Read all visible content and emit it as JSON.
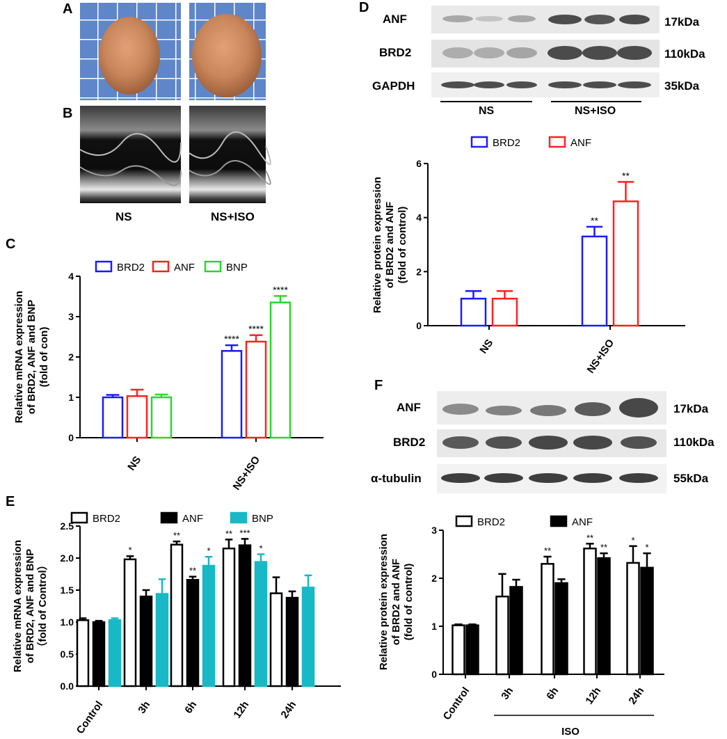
{
  "panels": {
    "A": "A",
    "B": "B",
    "C": "C",
    "D": "D",
    "E": "E",
    "F": "F"
  },
  "ab_labels": {
    "ns": "NS",
    "ns_iso": "NS+ISO"
  },
  "blot_d": {
    "bands": [
      {
        "name": "ANF",
        "size": "17kDa"
      },
      {
        "name": "BRD2",
        "size": "110kDa"
      },
      {
        "name": "GAPDH",
        "size": "35kDa"
      }
    ],
    "groups": [
      "NS",
      "NS+ISO"
    ]
  },
  "blot_f": {
    "bands": [
      {
        "name": "ANF",
        "size": "17kDa"
      },
      {
        "name": "BRD2",
        "size": "110kDa"
      },
      {
        "name": "α-tubulin",
        "size": "55kDa"
      }
    ]
  },
  "colors": {
    "brd2": "#1a1aff",
    "anf": "#ff2020",
    "bnp": "#2bd62b",
    "bnp_e": "#19b8c6"
  },
  "chart_data": [
    {
      "id": "C",
      "type": "bar",
      "categories": [
        "NS",
        "NS+ISO"
      ],
      "ylabel": [
        "Relative mRNA expression",
        "of BRD2, ANF and BNP",
        "(fold of con)"
      ],
      "ylim": [
        0,
        4
      ],
      "yticks": [
        "0",
        "1",
        "2",
        "3",
        "4"
      ],
      "legend": [
        "BRD2",
        "ANF",
        "BNP"
      ],
      "series": [
        {
          "name": "BRD2",
          "values": [
            1.0,
            2.15
          ],
          "err": [
            0.06,
            0.14
          ],
          "sig": [
            "",
            "****"
          ]
        },
        {
          "name": "ANF",
          "values": [
            1.03,
            2.38
          ],
          "err": [
            0.16,
            0.16
          ],
          "sig": [
            "",
            "****"
          ]
        },
        {
          "name": "BNP",
          "values": [
            1.0,
            3.35
          ],
          "err": [
            0.07,
            0.16
          ],
          "sig": [
            "",
            "****"
          ]
        }
      ]
    },
    {
      "id": "D",
      "type": "bar",
      "categories": [
        "NS",
        "NS+ISO"
      ],
      "ylabel": [
        "Relative protein expression",
        "of BRD2 and ANF",
        "(fold of control)"
      ],
      "ylim": [
        0,
        6
      ],
      "yticks": [
        "0",
        "2",
        "4",
        "6"
      ],
      "legend": [
        "BRD2",
        "ANF"
      ],
      "series": [
        {
          "name": "BRD2",
          "values": [
            1.0,
            3.3
          ],
          "err": [
            0.28,
            0.36
          ],
          "sig": [
            "",
            "**"
          ]
        },
        {
          "name": "ANF",
          "values": [
            1.0,
            4.6
          ],
          "err": [
            0.28,
            0.72
          ],
          "sig": [
            "",
            "**"
          ]
        }
      ]
    },
    {
      "id": "E",
      "type": "bar",
      "categories": [
        "Control",
        "3h",
        "6h",
        "12h",
        "24h"
      ],
      "ylabel": [
        "Relative mRNA expression",
        "of BRD2, ANF and BNP",
        "（fold of Control）"
      ],
      "ylim": [
        0,
        2.5
      ],
      "yticks": [
        "0.0",
        "0.5",
        "1.0",
        "1.5",
        "2.0",
        "2.5"
      ],
      "legend": [
        "BRD2",
        "ANF",
        "BNP"
      ],
      "series": [
        {
          "name": "BRD2",
          "values": [
            1.03,
            1.98,
            2.21,
            2.15,
            1.45
          ],
          "err": [
            0.03,
            0.05,
            0.05,
            0.14,
            0.25
          ],
          "sig": [
            "",
            "*",
            "**",
            "**",
            ""
          ]
        },
        {
          "name": "ANF",
          "values": [
            1.0,
            1.4,
            1.66,
            2.2,
            1.38
          ],
          "err": [
            0.02,
            0.1,
            0.05,
            0.1,
            0.1
          ],
          "sig": [
            "",
            "",
            "**",
            "***",
            ""
          ]
        },
        {
          "name": "BNP",
          "values": [
            1.03,
            1.44,
            1.88,
            1.94,
            1.54
          ],
          "err": [
            0.03,
            0.23,
            0.14,
            0.12,
            0.19
          ],
          "sig": [
            "",
            "",
            "*",
            "*",
            ""
          ]
        }
      ]
    },
    {
      "id": "F",
      "type": "bar",
      "categories": [
        "Control",
        "3h",
        "6h",
        "12h",
        "24h"
      ],
      "group_label": "ISO",
      "ylabel": [
        "Relative protein expression",
        "of BRD2 and ANF",
        "(fold of control)"
      ],
      "ylim": [
        0,
        3
      ],
      "yticks": [
        "0",
        "1",
        "2",
        "3"
      ],
      "legend": [
        "BRD2",
        "ANF"
      ],
      "series": [
        {
          "name": "BRD2",
          "values": [
            1.02,
            1.62,
            2.3,
            2.62,
            2.32
          ],
          "err": [
            0.02,
            0.47,
            0.15,
            0.1,
            0.35
          ],
          "sig": [
            "",
            "",
            "**",
            "**",
            "*"
          ]
        },
        {
          "name": "ANF",
          "values": [
            1.02,
            1.82,
            1.9,
            2.42,
            2.22
          ],
          "err": [
            0.02,
            0.15,
            0.08,
            0.1,
            0.3
          ],
          "sig": [
            "",
            "",
            "",
            "**",
            "*"
          ]
        }
      ]
    }
  ]
}
